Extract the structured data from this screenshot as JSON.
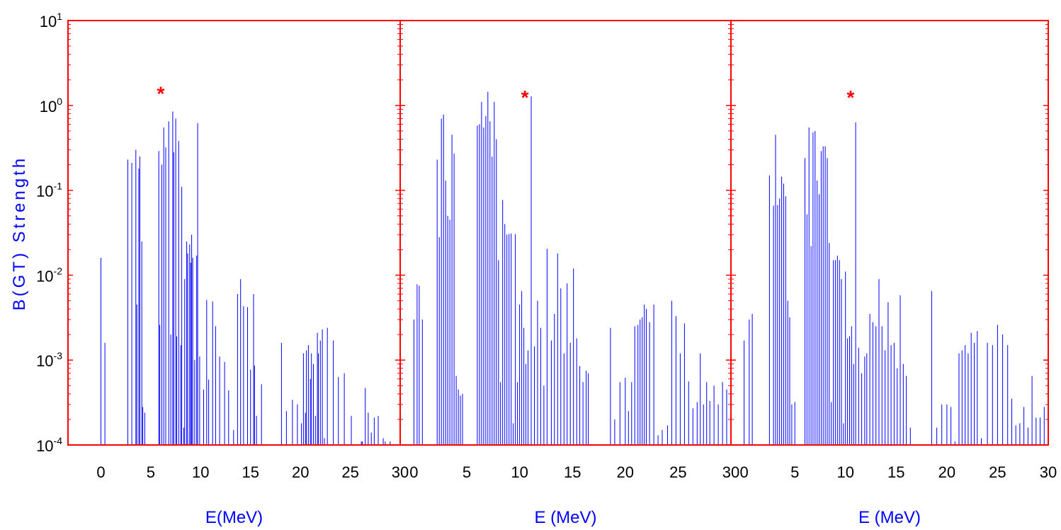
{
  "colors": {
    "frame": "#ff0000",
    "bars": "#0000ff",
    "axis_title": "#0000ff",
    "marker": "#ff0000"
  },
  "y_axis": {
    "label": "B(GT) Strength",
    "scale": "log",
    "range": [
      0.0001,
      10
    ],
    "tick_labels": [
      {
        "base": "10",
        "exp": "1"
      },
      {
        "base": "10",
        "exp": "0"
      },
      {
        "base": "10",
        "exp": "-1"
      },
      {
        "base": "10",
        "exp": "-2"
      },
      {
        "base": "10",
        "exp": "-3"
      },
      {
        "base": "10",
        "exp": "-4"
      }
    ]
  },
  "chart_data": [
    {
      "type": "bar",
      "xlabel": "E(MeV)",
      "ylabel": "B(GT) Strength",
      "xlim": [
        -3.3,
        30
      ],
      "ylim": [
        0.0001,
        10
      ],
      "y_scale": "log",
      "x_tick_labels": [
        "0",
        "5",
        "10",
        "15",
        "20",
        "25",
        "30"
      ],
      "marker": {
        "symbol": "*",
        "x": 6.0,
        "y": 1.5
      },
      "x": [
        0.0,
        0.4,
        2.7,
        3.1,
        3.5,
        3.6,
        3.8,
        3.9,
        4.1,
        4.2,
        4.4,
        5.8,
        5.9,
        6.1,
        6.3,
        6.5,
        6.8,
        7.0,
        7.2,
        7.3,
        7.5,
        7.6,
        7.8,
        8.0,
        8.1,
        8.3,
        8.4,
        8.6,
        8.7,
        8.9,
        9.0,
        9.1,
        9.2,
        9.4,
        9.6,
        9.7,
        9.9,
        10.3,
        10.6,
        10.8,
        11.2,
        11.5,
        11.9,
        12.4,
        12.8,
        13.3,
        13.7,
        14.0,
        14.3,
        14.7,
        15.0,
        15.3,
        15.4,
        15.6,
        16.1,
        18.1,
        18.6,
        19.2,
        19.7,
        20.1,
        20.3,
        20.5,
        20.6,
        20.8,
        21.0,
        21.1,
        21.3,
        21.5,
        21.7,
        21.8,
        22.0,
        22.2,
        22.4,
        22.7,
        23.3,
        23.8,
        24.4,
        25.1,
        26.1,
        26.2,
        26.5,
        26.8,
        27.1,
        27.4,
        27.8,
        28.3,
        28.5,
        29.0
      ],
      "values": [
        0.016,
        0.0016,
        0.23,
        0.21,
        0.3,
        0.0045,
        0.18,
        0.25,
        0.025,
        0.00028,
        0.00024,
        0.29,
        0.0026,
        0.2,
        0.55,
        0.32,
        0.65,
        0.002,
        0.85,
        0.28,
        0.7,
        0.0019,
        0.38,
        0.0015,
        0.11,
        0.00016,
        0.009,
        0.025,
        0.018,
        0.023,
        0.014,
        0.03,
        0.016,
        0.001,
        0.017,
        0.62,
        0.0011,
        0.00045,
        0.0051,
        0.00059,
        0.0049,
        0.0025,
        0.0011,
        0.00095,
        0.00044,
        0.00015,
        0.006,
        0.009,
        0.0043,
        0.0042,
        0.00077,
        0.006,
        0.00086,
        0.00022,
        0.00052,
        0.0016,
        0.00025,
        0.00034,
        0.0003,
        0.00018,
        0.0012,
        0.00024,
        0.0013,
        0.0015,
        0.0006,
        0.0012,
        0.0009,
        0.00022,
        0.0021,
        0.0012,
        0.0017,
        0.0023,
        0.00012,
        0.0024,
        0.0017,
        0.00063,
        0.0007,
        0.00022,
        0.00011,
        0.00011,
        0.00047,
        0.00024,
        0.00014,
        0.00021,
        0.00022,
        0.00012,
        0.00011,
        0.00011
      ]
    },
    {
      "type": "bar",
      "xlabel": "E (MeV)",
      "ylabel": "B(GT) Strength",
      "xlim": [
        -1.3,
        30
      ],
      "ylim": [
        0.0001,
        10
      ],
      "y_scale": "log",
      "x_tick_labels": [
        "0",
        "5",
        "10",
        "15",
        "20",
        "25",
        "30"
      ],
      "marker": {
        "symbol": "*",
        "x": 10.5,
        "y": 1.35
      },
      "x": [
        0.0,
        0.3,
        0.5,
        0.8,
        2.2,
        2.4,
        2.6,
        2.8,
        3.0,
        3.2,
        3.4,
        3.6,
        3.8,
        4.0,
        4.2,
        4.4,
        4.6,
        6.0,
        6.2,
        6.4,
        6.6,
        6.8,
        7.0,
        7.2,
        7.4,
        7.6,
        7.8,
        8.0,
        8.2,
        8.4,
        8.6,
        8.8,
        9.0,
        9.2,
        9.4,
        9.6,
        9.8,
        10.0,
        10.2,
        10.4,
        10.6,
        10.8,
        11.1,
        11.4,
        11.7,
        12.0,
        12.3,
        12.6,
        13.0,
        13.3,
        13.6,
        13.9,
        14.2,
        14.5,
        14.8,
        15.1,
        15.4,
        15.7,
        16.0,
        16.3,
        16.5,
        18.6,
        19.0,
        19.5,
        20.0,
        20.3,
        20.6,
        20.9,
        21.2,
        21.4,
        21.6,
        21.8,
        22.0,
        22.3,
        22.7,
        23.1,
        23.5,
        24.0,
        24.4,
        24.8,
        25.2,
        25.6,
        26.0,
        26.4,
        26.8,
        27.1,
        27.4,
        27.7,
        28.0,
        28.4,
        28.8,
        29.2,
        29.6
      ],
      "values": [
        0.003,
        0.0078,
        0.0075,
        0.003,
        0.23,
        0.028,
        0.7,
        0.78,
        0.13,
        0.05,
        0.045,
        0.45,
        0.27,
        0.00065,
        0.00045,
        0.00038,
        0.0004,
        0.58,
        0.6,
        1.1,
        0.55,
        0.75,
        1.45,
        0.65,
        0.25,
        1.1,
        0.4,
        0.015,
        0.00055,
        0.077,
        0.04,
        0.03,
        0.0305,
        0.031,
        0.00018,
        0.0305,
        0.00055,
        0.0045,
        0.0065,
        0.0024,
        0.0009,
        0.0013,
        1.28,
        0.00145,
        0.005,
        0.0024,
        0.0005,
        0.0205,
        0.0017,
        0.0035,
        0.018,
        0.007,
        0.0012,
        0.008,
        0.0016,
        0.012,
        0.0018,
        0.00085,
        0.00055,
        0.00075,
        0.0007,
        0.0024,
        0.0002,
        0.00055,
        0.00062,
        0.00025,
        0.00055,
        0.0025,
        0.0026,
        0.003,
        0.0032,
        0.0045,
        0.004,
        0.0028,
        0.0045,
        0.00013,
        0.00015,
        0.00017,
        0.005,
        0.0033,
        0.0012,
        0.0027,
        0.00056,
        0.00027,
        0.00032,
        0.0012,
        0.0003,
        0.00055,
        0.00033,
        0.0005,
        0.0003,
        0.00055,
        0.00045
      ]
    },
    {
      "type": "bar",
      "xlabel": "E (MeV)",
      "ylabel": "B(GT) Strength",
      "xlim": [
        -1.3,
        30
      ],
      "ylim": [
        0.0001,
        10
      ],
      "y_scale": "log",
      "x_tick_labels": [
        "0",
        "5",
        "10",
        "15",
        "20",
        "25",
        "30"
      ],
      "marker": {
        "symbol": "*",
        "x": 10.5,
        "y": 1.35
      },
      "x": [
        0.0,
        0.5,
        0.8,
        2.5,
        2.9,
        3.1,
        3.3,
        3.5,
        3.7,
        3.9,
        4.1,
        4.3,
        4.5,
        4.7,
        5.0,
        6.0,
        6.2,
        6.4,
        6.6,
        6.8,
        7.0,
        7.2,
        7.4,
        7.6,
        7.8,
        8.0,
        8.2,
        8.4,
        8.6,
        8.8,
        9.0,
        9.2,
        9.4,
        9.6,
        9.8,
        10.0,
        10.2,
        10.4,
        10.6,
        10.8,
        11.0,
        11.3,
        11.6,
        11.9,
        12.1,
        12.4,
        12.7,
        13.0,
        13.3,
        13.6,
        13.9,
        14.2,
        14.5,
        14.8,
        15.1,
        15.4,
        15.7,
        16.0,
        16.4,
        18.5,
        19.0,
        19.5,
        20.0,
        20.4,
        20.8,
        21.2,
        21.5,
        21.8,
        22.1,
        22.4,
        22.7,
        23.0,
        23.4,
        24.0,
        24.5,
        25.0,
        25.5,
        26.0,
        26.4,
        26.8,
        27.2,
        27.6,
        28.0,
        28.4,
        28.8,
        29.2,
        29.6
      ],
      "values": [
        0.0017,
        0.003,
        0.0035,
        0.15,
        0.066,
        0.45,
        0.067,
        0.08,
        0.145,
        0.12,
        0.085,
        0.005,
        0.0032,
        0.0003,
        0.00032,
        0.24,
        0.052,
        0.55,
        0.022,
        0.48,
        0.5,
        0.13,
        0.09,
        0.29,
        0.33,
        0.33,
        0.24,
        0.024,
        0.00032,
        0.015,
        0.015,
        0.017,
        0.015,
        0.009,
        0.00018,
        0.011,
        0.0018,
        0.0019,
        0.0025,
        0.0009,
        0.63,
        0.0014,
        0.0007,
        0.0011,
        0.0012,
        0.0035,
        0.0028,
        0.0025,
        0.009,
        0.0025,
        0.0013,
        0.0048,
        0.0015,
        0.0016,
        0.0008,
        0.0058,
        0.0009,
        0.00065,
        0.00016,
        0.0065,
        0.00016,
        0.0003,
        0.0003,
        0.00028,
        0.00011,
        0.0012,
        0.0013,
        0.0015,
        0.0012,
        0.0021,
        0.0016,
        0.0022,
        0.00012,
        0.0016,
        0.0015,
        0.0026,
        0.002,
        0.0015,
        0.00035,
        0.00017,
        0.00018,
        0.00028,
        0.00016,
        0.00065,
        0.00021,
        0.00021,
        0.00028
      ]
    }
  ]
}
